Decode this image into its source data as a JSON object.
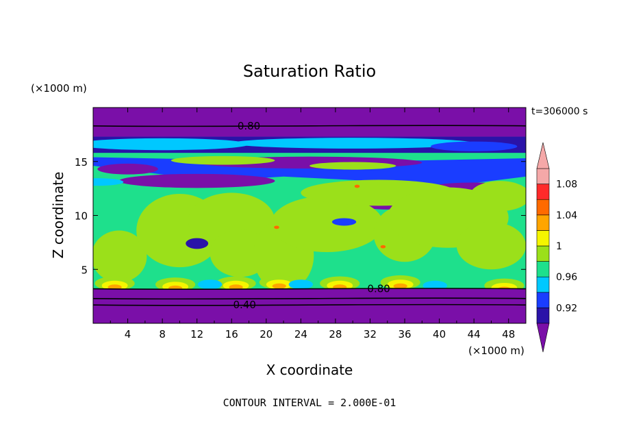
{
  "chart_data": {
    "type": "heatmap",
    "title": "Saturation Ratio",
    "xlabel": "X coordinate",
    "ylabel": "Z coordinate",
    "x_unit": "(×1000 m)",
    "y_unit": "(×1000 m)",
    "time_label": "t=306000 s",
    "footer": "CONTOUR INTERVAL = 2.000E-01",
    "xlim": [
      0,
      50
    ],
    "ylim": [
      0,
      20
    ],
    "x_ticks": [
      4,
      8,
      12,
      16,
      20,
      24,
      28,
      32,
      36,
      40,
      44,
      48
    ],
    "y_ticks": [
      5,
      10,
      15
    ],
    "contour_labels": [
      {
        "text": "0.80",
        "x": 18,
        "z": 18.3
      },
      {
        "text": "0.80",
        "x": 33,
        "z": 3.2
      },
      {
        "text": "0.40",
        "x": 17.5,
        "z": 1.7
      }
    ],
    "colorbar": {
      "levels": [
        0.9,
        0.92,
        0.94,
        0.96,
        0.98,
        1.0,
        1.02,
        1.04,
        1.06,
        1.08,
        1.1
      ],
      "tick_labels": [
        "0.92",
        "0.96",
        "1",
        "1.04",
        "1.08"
      ],
      "colors": [
        "#7a0fa8",
        "#2a13a8",
        "#1a3dff",
        "#00c8ff",
        "#1ee08c",
        "#9be01a",
        "#f5f500",
        "#ffa500",
        "#ff6a00",
        "#ff2a2a",
        "#f5a8a8"
      ],
      "extend": "both"
    }
  }
}
